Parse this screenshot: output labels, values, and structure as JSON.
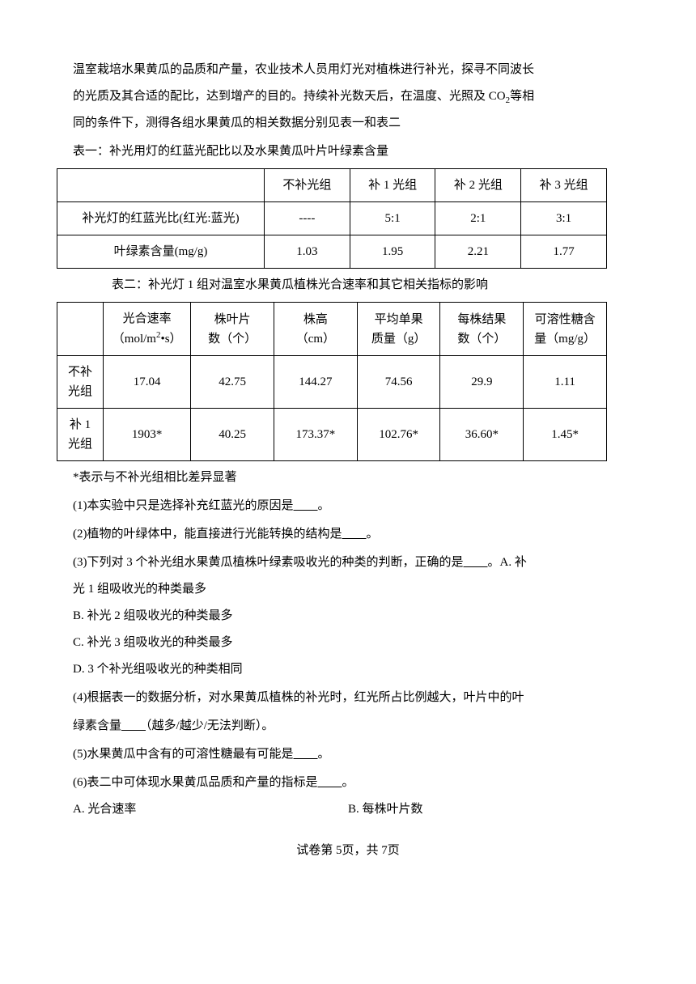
{
  "intro": {
    "p1": "温室栽培水果黄瓜的品质和产量，农业技术人员用灯光对植株进行补光，探寻不同波长",
    "p2_a": "的光质及其合适的配比，达到增产的目的。持续补光数天后，在温度、光照及 CO",
    "p2_sub": "2",
    "p2_b": "等相",
    "p3": "同的条件下，测得各组水果黄瓜的相关数据分别见表一和表二"
  },
  "table1": {
    "title": "表一：补光用灯的红蓝光配比以及水果黄瓜叶片叶绿素含量",
    "headers": [
      "",
      "不补光组",
      "补 1 光组",
      "补 2 光组",
      "补 3 光组"
    ],
    "row1_label": "补光灯的红蓝光比(红光:蓝光)",
    "row1": [
      "----",
      "5:1",
      "2:1",
      "3:1"
    ],
    "row2_label": "叶绿素含量(mg/g)",
    "row2": [
      "1.03",
      "1.95",
      "2.21",
      "1.77"
    ]
  },
  "table2": {
    "title": "表二：补光灯 1 组对温室水果黄瓜植株光合速率和其它相关指标的影响",
    "col_headers": [
      "",
      "光合速率（mol/m²•s）",
      "株叶片数（个）",
      "株高（cm）",
      "平均单果质量（g）",
      "每株结果数（个）",
      "可溶性糖含量（mg/g）"
    ],
    "h1_a": "光合速率",
    "h1_b": "（mol/m",
    "h1_sup": "2",
    "h1_c": "•s）",
    "h2_a": "株叶片",
    "h2_b": "数（个）",
    "h3_a": "株高",
    "h3_b": "（cm）",
    "h4_a": "平均单果",
    "h4_b": "质量（g）",
    "h5_a": "每株结果",
    "h5_b": "数（个）",
    "h6_a": "可溶性糖含",
    "h6_b": "量（mg/g）",
    "row1_label_a": "不补",
    "row1_label_b": "光组",
    "row1": [
      "17.04",
      "42.75",
      "144.27",
      "74.56",
      "29.9",
      "1.11"
    ],
    "row2_label_a": "补 1",
    "row2_label_b": "光组",
    "row2": [
      "1903*",
      "40.25",
      "173.37*",
      "102.76*",
      "36.60*",
      "1.45*"
    ]
  },
  "note": "*表示与不补光组相比差异显著",
  "questions": {
    "q1_a": "(1)本实验中只是选择补充红蓝光的原因是",
    "q1_blank": "　　",
    "q1_b": "。",
    "q2_a": "(2)植物的叶绿体中，能直接进行光能转换的结构是",
    "q2_blank": "　　",
    "q2_b": "。",
    "q3_a": "(3)下列对 3 个补光组水果黄瓜植株叶绿素吸收光的种类的判断，正确的是",
    "q3_blank": "　　",
    "q3_b": "。A. 补",
    "q3_c": "光 1 组吸收光的种类最多",
    "q3_optB": "B. 补光 2 组吸收光的种类最多",
    "q3_optC": "C. 补光 3 组吸收光的种类最多",
    "q3_optD": "D. 3 个补光组吸收光的种类相同",
    "q4_a": "(4)根据表一的数据分析，对水果黄瓜植株的补光时，红光所占比例越大，叶片中的叶",
    "q4_b": "绿素含量",
    "q4_blank": "　　",
    "q4_c": "（越多/越少/无法判断）。",
    "q5_a": "(5)水果黄瓜中含有的可溶性糖最有可能是",
    "q5_blank": "　　",
    "q5_b": "。",
    "q6_a": "(6)表二中可体现水果黄瓜品质和产量的指标是",
    "q6_blank": "　　",
    "q6_b": "。",
    "q6_optA": "A. 光合速率",
    "q6_optB": "B. 每株叶片数"
  },
  "footer": "试卷第 5页，共 7页"
}
